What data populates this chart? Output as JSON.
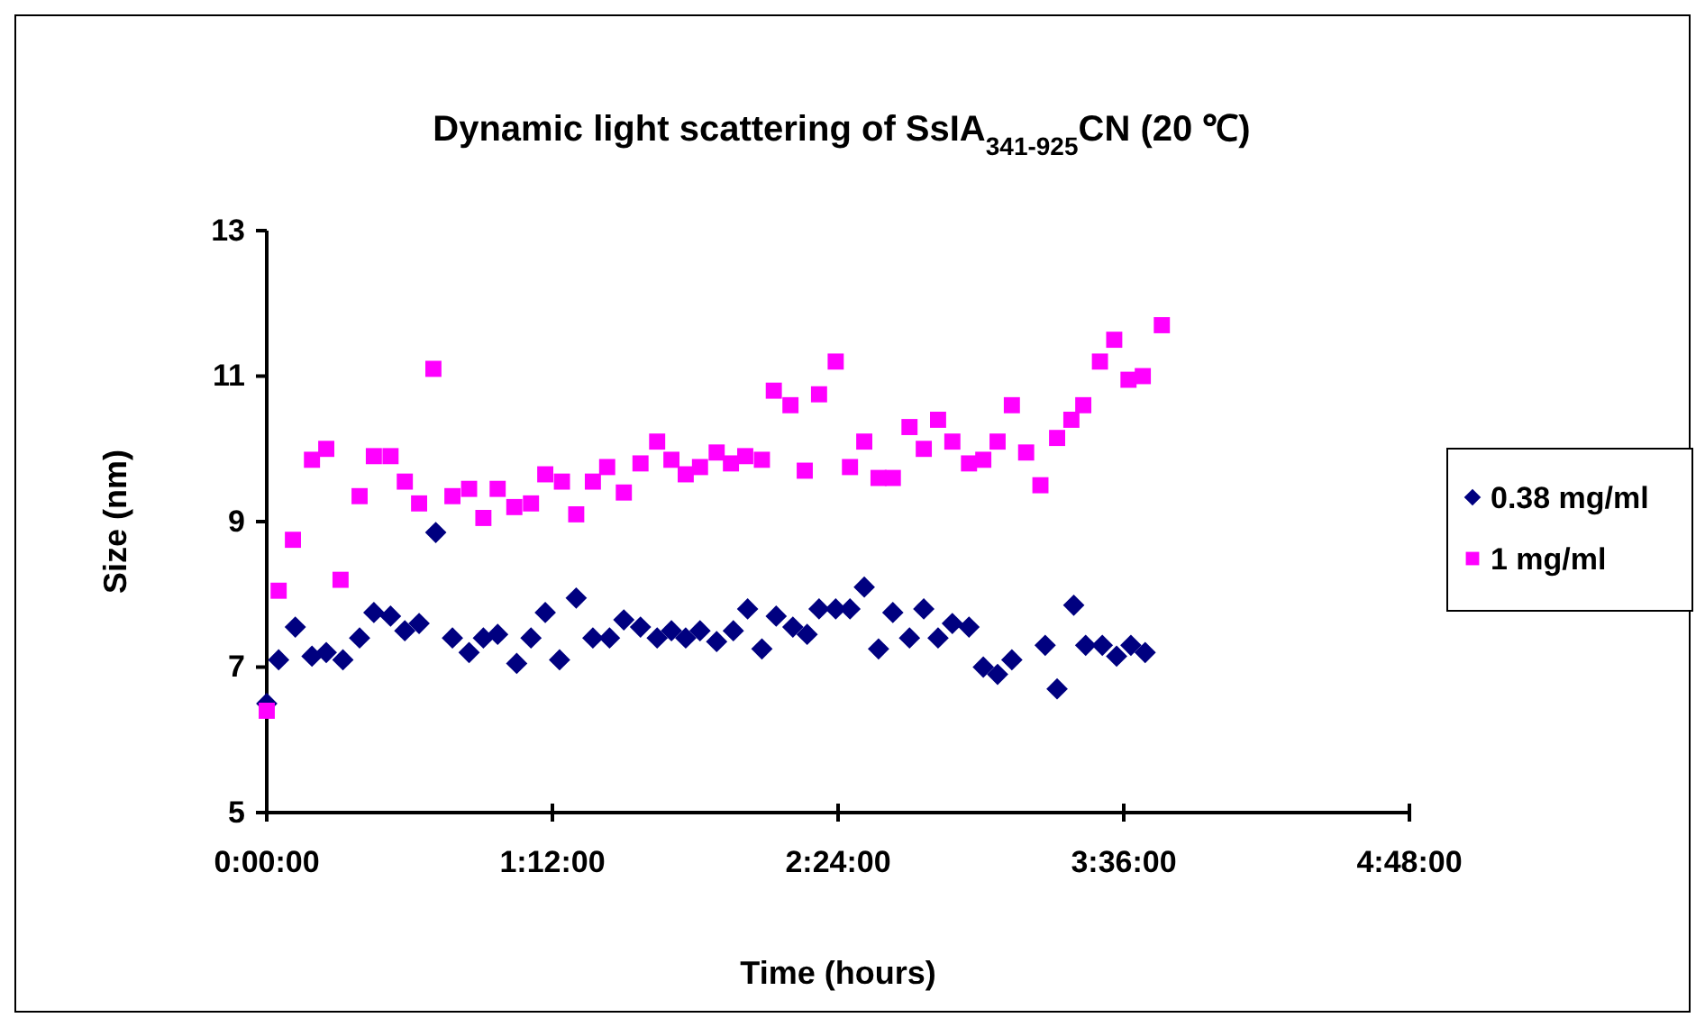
{
  "chart_data": {
    "type": "scatter",
    "title": "Dynamic light scattering of SsIA$_{341-925}$CN (20 ℃)",
    "xlabel": "Time (hours)",
    "ylabel": "Size (nm)",
    "xlim": [
      0,
      4.8
    ],
    "xticks": [
      {
        "value": 0,
        "label": "0:00:00"
      },
      {
        "value": 1.2,
        "label": "1:12:00"
      },
      {
        "value": 2.4,
        "label": "2:24:00"
      },
      {
        "value": 3.6,
        "label": "3:36:00"
      },
      {
        "value": 4.8,
        "label": "4:48:00"
      }
    ],
    "ylim": [
      5,
      13
    ],
    "yticks": [
      5,
      7,
      9,
      11,
      13
    ],
    "grid": false,
    "legend": "right",
    "series": [
      {
        "name": "0.38 mg/ml",
        "color": "#000080",
        "marker": "diamond",
        "x": [
          0,
          0.05,
          0.12,
          0.19,
          0.25,
          0.32,
          0.39,
          0.45,
          0.52,
          0.58,
          0.64,
          0.71,
          0.78,
          0.85,
          0.91,
          0.97,
          1.05,
          1.11,
          1.17,
          1.23,
          1.3,
          1.37,
          1.44,
          1.5,
          1.57,
          1.64,
          1.7,
          1.76,
          1.82,
          1.89,
          1.96,
          2.02,
          2.08,
          2.14,
          2.21,
          2.27,
          2.32,
          2.39,
          2.45,
          2.51,
          2.57,
          2.63,
          2.7,
          2.76,
          2.82,
          2.88,
          2.95,
          3.01,
          3.07,
          3.13,
          3.27,
          3.32,
          3.39,
          3.44,
          3.51,
          3.57,
          3.63,
          3.69
        ],
        "values": [
          6.5,
          7.1,
          7.55,
          7.15,
          7.2,
          7.1,
          7.4,
          7.75,
          7.7,
          7.5,
          7.6,
          8.85,
          7.4,
          7.2,
          7.4,
          7.45,
          7.05,
          7.4,
          7.75,
          7.1,
          7.95,
          7.4,
          7.4,
          7.65,
          7.55,
          7.4,
          7.5,
          7.4,
          7.5,
          7.35,
          7.5,
          7.8,
          7.25,
          7.7,
          7.55,
          7.45,
          7.8,
          7.8,
          7.8,
          8.1,
          7.25,
          7.75,
          7.4,
          7.8,
          7.4,
          7.6,
          7.55,
          7.0,
          6.9,
          7.1,
          7.3,
          6.7,
          7.85,
          7.3,
          7.3,
          7.15,
          7.3,
          7.2
        ]
      },
      {
        "name": "1 mg/ml",
        "color": "#ff00ff",
        "marker": "square",
        "x": [
          0,
          0.05,
          0.11,
          0.19,
          0.25,
          0.31,
          0.39,
          0.45,
          0.52,
          0.58,
          0.64,
          0.7,
          0.78,
          0.85,
          0.91,
          0.97,
          1.04,
          1.11,
          1.17,
          1.24,
          1.3,
          1.37,
          1.43,
          1.5,
          1.57,
          1.64,
          1.7,
          1.76,
          1.82,
          1.89,
          1.95,
          2.01,
          2.08,
          2.13,
          2.2,
          2.26,
          2.32,
          2.39,
          2.45,
          2.51,
          2.57,
          2.63,
          2.7,
          2.76,
          2.82,
          2.88,
          2.95,
          3.01,
          3.07,
          3.13,
          3.19,
          3.25,
          3.32,
          3.38,
          3.43,
          3.5,
          3.56,
          3.62,
          3.68,
          3.76
        ],
        "values": [
          6.4,
          8.05,
          8.75,
          9.85,
          10.0,
          8.2,
          9.35,
          9.9,
          9.9,
          9.55,
          9.25,
          11.1,
          9.35,
          9.45,
          9.05,
          9.45,
          9.2,
          9.25,
          9.65,
          9.55,
          9.1,
          9.55,
          9.75,
          9.4,
          9.8,
          10.1,
          9.85,
          9.65,
          9.75,
          9.95,
          9.8,
          9.9,
          9.85,
          10.8,
          10.6,
          9.7,
          10.75,
          11.2,
          9.75,
          10.1,
          9.6,
          9.6,
          10.3,
          10.0,
          10.4,
          10.1,
          9.8,
          9.85,
          10.1,
          10.6,
          9.95,
          9.5,
          10.15,
          10.4,
          10.6,
          11.2,
          11.5,
          10.95,
          11.0,
          11.7
        ]
      }
    ]
  }
}
